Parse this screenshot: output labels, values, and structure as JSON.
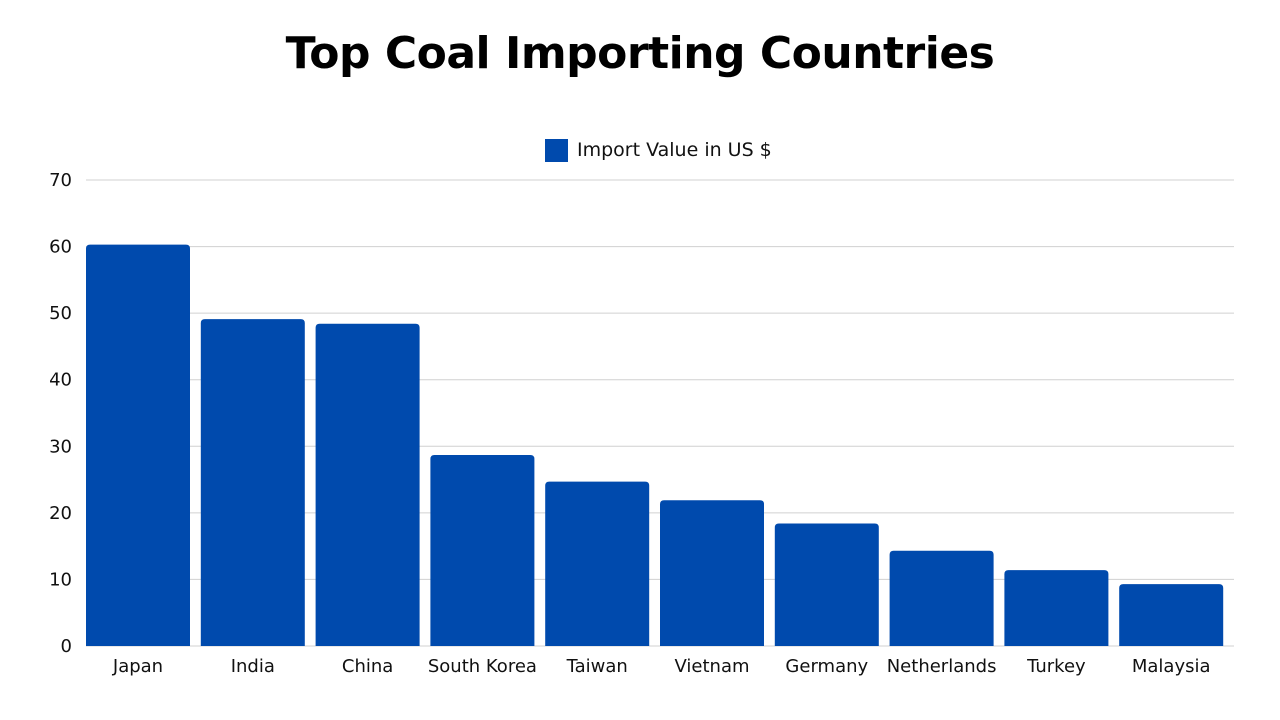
{
  "chart_data": {
    "type": "bar",
    "title": "Top Coal Importing Countries",
    "categories": [
      "Japan",
      "India",
      "China",
      "South Korea",
      "Taiwan",
      "Vietnam",
      "Germany",
      "Netherlands",
      "Turkey",
      "Malaysia"
    ],
    "series": [
      {
        "name": "Import Value in US $",
        "color": "#004aad",
        "values": [
          60.3,
          49.1,
          48.4,
          28.7,
          24.7,
          21.9,
          18.4,
          14.3,
          11.4,
          9.3
        ]
      }
    ],
    "xlabel": "",
    "ylabel": "",
    "ylim": [
      0,
      70
    ],
    "yticks": [
      0,
      10,
      20,
      30,
      40,
      50,
      60,
      70
    ],
    "grid": true,
    "legend_position": "top-center"
  },
  "colors": {
    "bar": "#004aad",
    "grid": "#d0d0d0",
    "text": "#111111"
  }
}
